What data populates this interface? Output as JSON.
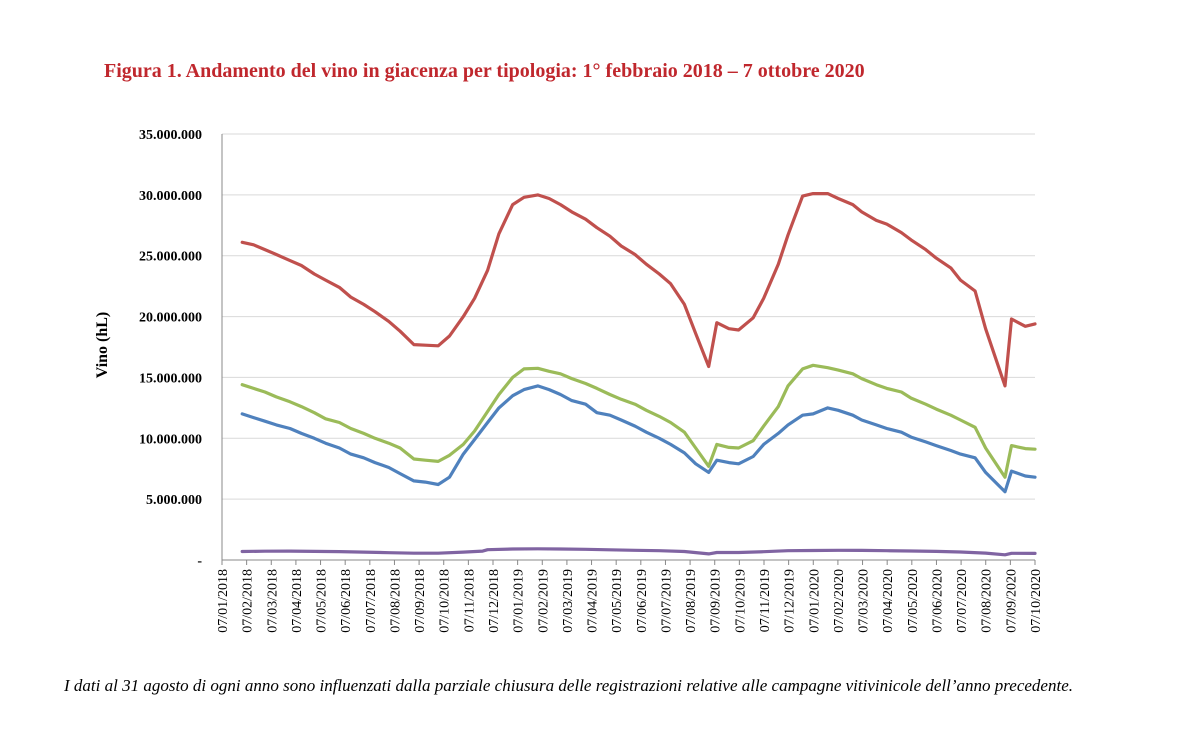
{
  "title": "Figura 1. Andamento del vino in giacenza per tipologia: 1° febbraio 2018 – 7 ottobre 2020",
  "note": "I dati al 31 agosto di ogni anno sono influenzati dalla parziale chiusura delle registrazioni relative alle campagne vitivinicole dell’anno precedente.",
  "chart_data": {
    "type": "line",
    "ylabel": "Vino (hL)",
    "xlabel": "",
    "ylim": [
      0,
      35000000
    ],
    "y_ticks": [
      0,
      5000000,
      10000000,
      15000000,
      20000000,
      25000000,
      30000000,
      35000000
    ],
    "y_tick_labels": [
      "-",
      "5.000.000",
      "10.000.000",
      "15.000.000",
      "20.000.000",
      "25.000.000",
      "30.000.000",
      "35.000.000"
    ],
    "grid": true,
    "legend": "none",
    "x_tick_labels": [
      "07/01/2018",
      "07/02/2018",
      "07/03/2018",
      "07/04/2018",
      "07/05/2018",
      "07/06/2018",
      "07/07/2018",
      "07/08/2018",
      "07/09/2018",
      "07/10/2018",
      "07/11/2018",
      "07/12/2018",
      "07/01/2019",
      "07/02/2019",
      "07/03/2019",
      "07/04/2019",
      "07/05/2019",
      "07/06/2019",
      "07/07/2019",
      "07/08/2019",
      "07/09/2019",
      "07/10/2019",
      "07/11/2019",
      "07/12/2019",
      "07/01/2020",
      "07/02/2020",
      "07/03/2020",
      "07/04/2020",
      "07/05/2020",
      "07/06/2020",
      "07/07/2020",
      "07/08/2020",
      "07/09/2020",
      "07/10/2020"
    ],
    "xlim": [
      "2018-01-07",
      "2020-10-07"
    ],
    "series": [
      {
        "color": "#c0504d",
        "points": [
          [
            "2018-02-01",
            26100000
          ],
          [
            "2018-02-15",
            25900000
          ],
          [
            "2018-03-01",
            25500000
          ],
          [
            "2018-03-15",
            25100000
          ],
          [
            "2018-04-01",
            24600000
          ],
          [
            "2018-04-15",
            24200000
          ],
          [
            "2018-05-01",
            23500000
          ],
          [
            "2018-05-15",
            23000000
          ],
          [
            "2018-06-01",
            22400000
          ],
          [
            "2018-06-15",
            21600000
          ],
          [
            "2018-07-01",
            21000000
          ],
          [
            "2018-07-15",
            20400000
          ],
          [
            "2018-08-01",
            19600000
          ],
          [
            "2018-08-15",
            18800000
          ],
          [
            "2018-09-01",
            17700000
          ],
          [
            "2018-09-15",
            17650000
          ],
          [
            "2018-10-01",
            17600000
          ],
          [
            "2018-10-15",
            18400000
          ],
          [
            "2018-11-01",
            20000000
          ],
          [
            "2018-11-15",
            21500000
          ],
          [
            "2018-12-01",
            23800000
          ],
          [
            "2018-12-15",
            26800000
          ],
          [
            "2019-01-01",
            29200000
          ],
          [
            "2019-01-15",
            29800000
          ],
          [
            "2019-02-01",
            30000000
          ],
          [
            "2019-02-15",
            29700000
          ],
          [
            "2019-03-01",
            29200000
          ],
          [
            "2019-03-15",
            28600000
          ],
          [
            "2019-04-01",
            28000000
          ],
          [
            "2019-04-15",
            27300000
          ],
          [
            "2019-05-01",
            26600000
          ],
          [
            "2019-05-15",
            25800000
          ],
          [
            "2019-06-01",
            25100000
          ],
          [
            "2019-06-15",
            24300000
          ],
          [
            "2019-07-01",
            23500000
          ],
          [
            "2019-07-15",
            22700000
          ],
          [
            "2019-08-01",
            21000000
          ],
          [
            "2019-08-15",
            18600000
          ],
          [
            "2019-08-31",
            15900000
          ],
          [
            "2019-09-10",
            19500000
          ],
          [
            "2019-09-25",
            19000000
          ],
          [
            "2019-10-07",
            18900000
          ],
          [
            "2019-10-25",
            19900000
          ],
          [
            "2019-11-07",
            21500000
          ],
          [
            "2019-11-25",
            24300000
          ],
          [
            "2019-12-07",
            26700000
          ],
          [
            "2019-12-25",
            29900000
          ],
          [
            "2020-01-07",
            30100000
          ],
          [
            "2020-01-25",
            30100000
          ],
          [
            "2020-02-07",
            29700000
          ],
          [
            "2020-02-25",
            29200000
          ],
          [
            "2020-03-07",
            28600000
          ],
          [
            "2020-03-25",
            27900000
          ],
          [
            "2020-04-07",
            27600000
          ],
          [
            "2020-04-25",
            26900000
          ],
          [
            "2020-05-07",
            26300000
          ],
          [
            "2020-05-25",
            25500000
          ],
          [
            "2020-06-07",
            24800000
          ],
          [
            "2020-06-25",
            24000000
          ],
          [
            "2020-07-07",
            23000000
          ],
          [
            "2020-07-25",
            22100000
          ],
          [
            "2020-08-07",
            19000000
          ],
          [
            "2020-08-31",
            14300000
          ],
          [
            "2020-09-08",
            19800000
          ],
          [
            "2020-09-25",
            19200000
          ],
          [
            "2020-10-07",
            19400000
          ]
        ]
      },
      {
        "color": "#9bbb59",
        "points": [
          [
            "2018-02-01",
            14400000
          ],
          [
            "2018-02-15",
            14100000
          ],
          [
            "2018-03-01",
            13800000
          ],
          [
            "2018-03-15",
            13400000
          ],
          [
            "2018-04-01",
            13000000
          ],
          [
            "2018-04-15",
            12600000
          ],
          [
            "2018-05-01",
            12100000
          ],
          [
            "2018-05-15",
            11600000
          ],
          [
            "2018-06-01",
            11300000
          ],
          [
            "2018-06-15",
            10800000
          ],
          [
            "2018-07-01",
            10400000
          ],
          [
            "2018-07-15",
            10000000
          ],
          [
            "2018-08-01",
            9600000
          ],
          [
            "2018-08-15",
            9200000
          ],
          [
            "2018-09-01",
            8300000
          ],
          [
            "2018-09-15",
            8200000
          ],
          [
            "2018-10-01",
            8100000
          ],
          [
            "2018-10-15",
            8600000
          ],
          [
            "2018-11-01",
            9500000
          ],
          [
            "2018-11-15",
            10600000
          ],
          [
            "2018-12-01",
            12200000
          ],
          [
            "2018-12-15",
            13600000
          ],
          [
            "2019-01-01",
            15000000
          ],
          [
            "2019-01-15",
            15700000
          ],
          [
            "2019-02-01",
            15750000
          ],
          [
            "2019-02-15",
            15500000
          ],
          [
            "2019-03-01",
            15300000
          ],
          [
            "2019-03-15",
            14900000
          ],
          [
            "2019-04-01",
            14500000
          ],
          [
            "2019-04-15",
            14100000
          ],
          [
            "2019-05-01",
            13600000
          ],
          [
            "2019-05-15",
            13200000
          ],
          [
            "2019-06-01",
            12800000
          ],
          [
            "2019-06-15",
            12300000
          ],
          [
            "2019-07-01",
            11800000
          ],
          [
            "2019-07-15",
            11300000
          ],
          [
            "2019-08-01",
            10500000
          ],
          [
            "2019-08-15",
            9200000
          ],
          [
            "2019-08-31",
            7700000
          ],
          [
            "2019-09-10",
            9500000
          ],
          [
            "2019-09-25",
            9250000
          ],
          [
            "2019-10-07",
            9200000
          ],
          [
            "2019-10-25",
            9800000
          ],
          [
            "2019-11-07",
            11000000
          ],
          [
            "2019-11-25",
            12600000
          ],
          [
            "2019-12-07",
            14300000
          ],
          [
            "2019-12-25",
            15700000
          ],
          [
            "2020-01-07",
            16000000
          ],
          [
            "2020-01-25",
            15800000
          ],
          [
            "2020-02-07",
            15600000
          ],
          [
            "2020-02-25",
            15300000
          ],
          [
            "2020-03-07",
            14900000
          ],
          [
            "2020-03-25",
            14400000
          ],
          [
            "2020-04-07",
            14100000
          ],
          [
            "2020-04-25",
            13800000
          ],
          [
            "2020-05-07",
            13300000
          ],
          [
            "2020-05-25",
            12800000
          ],
          [
            "2020-06-07",
            12400000
          ],
          [
            "2020-06-25",
            11900000
          ],
          [
            "2020-07-07",
            11500000
          ],
          [
            "2020-07-25",
            10900000
          ],
          [
            "2020-08-07",
            9200000
          ],
          [
            "2020-08-31",
            6800000
          ],
          [
            "2020-09-08",
            9400000
          ],
          [
            "2020-09-25",
            9150000
          ],
          [
            "2020-10-07",
            9100000
          ]
        ]
      },
      {
        "color": "#4f81bd",
        "points": [
          [
            "2018-02-01",
            12000000
          ],
          [
            "2018-02-15",
            11700000
          ],
          [
            "2018-03-01",
            11400000
          ],
          [
            "2018-03-15",
            11100000
          ],
          [
            "2018-04-01",
            10800000
          ],
          [
            "2018-04-15",
            10400000
          ],
          [
            "2018-05-01",
            10000000
          ],
          [
            "2018-05-15",
            9600000
          ],
          [
            "2018-06-01",
            9200000
          ],
          [
            "2018-06-15",
            8700000
          ],
          [
            "2018-07-01",
            8400000
          ],
          [
            "2018-07-15",
            8000000
          ],
          [
            "2018-08-01",
            7600000
          ],
          [
            "2018-08-15",
            7100000
          ],
          [
            "2018-09-01",
            6500000
          ],
          [
            "2018-09-15",
            6400000
          ],
          [
            "2018-10-01",
            6200000
          ],
          [
            "2018-10-15",
            6800000
          ],
          [
            "2018-11-01",
            8700000
          ],
          [
            "2018-11-15",
            9900000
          ],
          [
            "2018-12-01",
            11300000
          ],
          [
            "2018-12-15",
            12500000
          ],
          [
            "2019-01-01",
            13500000
          ],
          [
            "2019-01-15",
            14000000
          ],
          [
            "2019-02-01",
            14300000
          ],
          [
            "2019-02-15",
            14000000
          ],
          [
            "2019-03-01",
            13600000
          ],
          [
            "2019-03-15",
            13100000
          ],
          [
            "2019-04-01",
            12800000
          ],
          [
            "2019-04-15",
            12100000
          ],
          [
            "2019-05-01",
            11900000
          ],
          [
            "2019-05-15",
            11500000
          ],
          [
            "2019-06-01",
            11000000
          ],
          [
            "2019-06-15",
            10500000
          ],
          [
            "2019-07-01",
            10000000
          ],
          [
            "2019-07-15",
            9500000
          ],
          [
            "2019-08-01",
            8800000
          ],
          [
            "2019-08-15",
            7900000
          ],
          [
            "2019-08-31",
            7200000
          ],
          [
            "2019-09-10",
            8200000
          ],
          [
            "2019-09-25",
            8000000
          ],
          [
            "2019-10-07",
            7900000
          ],
          [
            "2019-10-25",
            8500000
          ],
          [
            "2019-11-07",
            9500000
          ],
          [
            "2019-11-25",
            10400000
          ],
          [
            "2019-12-07",
            11100000
          ],
          [
            "2019-12-25",
            11900000
          ],
          [
            "2020-01-07",
            12000000
          ],
          [
            "2020-01-25",
            12500000
          ],
          [
            "2020-02-07",
            12300000
          ],
          [
            "2020-02-25",
            11900000
          ],
          [
            "2020-03-07",
            11500000
          ],
          [
            "2020-03-25",
            11100000
          ],
          [
            "2020-04-07",
            10800000
          ],
          [
            "2020-04-25",
            10500000
          ],
          [
            "2020-05-07",
            10100000
          ],
          [
            "2020-05-25",
            9700000
          ],
          [
            "2020-06-07",
            9400000
          ],
          [
            "2020-06-25",
            9000000
          ],
          [
            "2020-07-07",
            8700000
          ],
          [
            "2020-07-25",
            8400000
          ],
          [
            "2020-08-07",
            7200000
          ],
          [
            "2020-08-31",
            5600000
          ],
          [
            "2020-09-08",
            7300000
          ],
          [
            "2020-09-25",
            6900000
          ],
          [
            "2020-10-07",
            6800000
          ]
        ]
      },
      {
        "color": "#8064a2",
        "points": [
          [
            "2018-02-01",
            700000
          ],
          [
            "2018-03-01",
            720000
          ],
          [
            "2018-04-01",
            730000
          ],
          [
            "2018-05-01",
            710000
          ],
          [
            "2018-06-01",
            690000
          ],
          [
            "2018-07-01",
            650000
          ],
          [
            "2018-08-01",
            600000
          ],
          [
            "2018-09-01",
            560000
          ],
          [
            "2018-10-01",
            560000
          ],
          [
            "2018-11-01",
            650000
          ],
          [
            "2018-11-25",
            730000
          ],
          [
            "2018-12-01",
            850000
          ],
          [
            "2019-01-01",
            900000
          ],
          [
            "2019-02-01",
            920000
          ],
          [
            "2019-03-01",
            900000
          ],
          [
            "2019-04-01",
            880000
          ],
          [
            "2019-05-01",
            840000
          ],
          [
            "2019-06-01",
            800000
          ],
          [
            "2019-07-01",
            760000
          ],
          [
            "2019-08-01",
            700000
          ],
          [
            "2019-08-31",
            500000
          ],
          [
            "2019-09-10",
            620000
          ],
          [
            "2019-10-07",
            620000
          ],
          [
            "2019-11-07",
            680000
          ],
          [
            "2019-12-07",
            760000
          ],
          [
            "2020-01-07",
            780000
          ],
          [
            "2020-02-07",
            800000
          ],
          [
            "2020-03-07",
            790000
          ],
          [
            "2020-04-07",
            760000
          ],
          [
            "2020-05-07",
            740000
          ],
          [
            "2020-06-07",
            710000
          ],
          [
            "2020-07-07",
            660000
          ],
          [
            "2020-08-07",
            570000
          ],
          [
            "2020-08-31",
            430000
          ],
          [
            "2020-09-08",
            550000
          ],
          [
            "2020-10-07",
            540000
          ]
        ]
      }
    ]
  }
}
